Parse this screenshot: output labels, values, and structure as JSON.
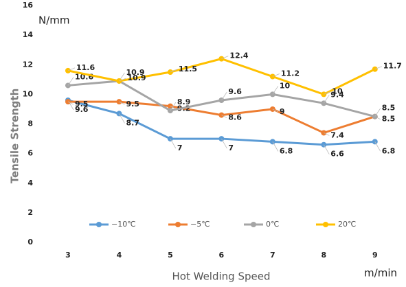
{
  "chart_data": {
    "type": "line",
    "y_unit": "N/mm",
    "x_unit": "m/min",
    "y_label": "Tensile Strength",
    "x_label": "Hot Welding Speed",
    "categories": [
      "3",
      "4",
      "5",
      "6",
      "7",
      "8",
      "9"
    ],
    "series": [
      {
        "name": "−10℃",
        "color": "#5b9bd5",
        "values": [
          9.6,
          8.7,
          7,
          7,
          6.8,
          6.6,
          6.8
        ]
      },
      {
        "name": "−5℃",
        "color": "#ed7d31",
        "values": [
          9.5,
          9.5,
          9.2,
          8.6,
          9,
          7.4,
          8.5
        ]
      },
      {
        "name": "0℃",
        "color": "#a5a5a5",
        "values": [
          10.6,
          10.9,
          8.9,
          9.6,
          10,
          9.4,
          8.5
        ]
      },
      {
        "name": "20℃",
        "color": "#ffc000",
        "values": [
          11.6,
          10.9,
          11.5,
          12.4,
          11.2,
          10,
          11.7
        ]
      }
    ],
    "ylim": [
      0,
      16
    ],
    "yticks": [
      0,
      2,
      4,
      6,
      8,
      10,
      12,
      14,
      16
    ],
    "grid": false,
    "legend": "bottom"
  }
}
